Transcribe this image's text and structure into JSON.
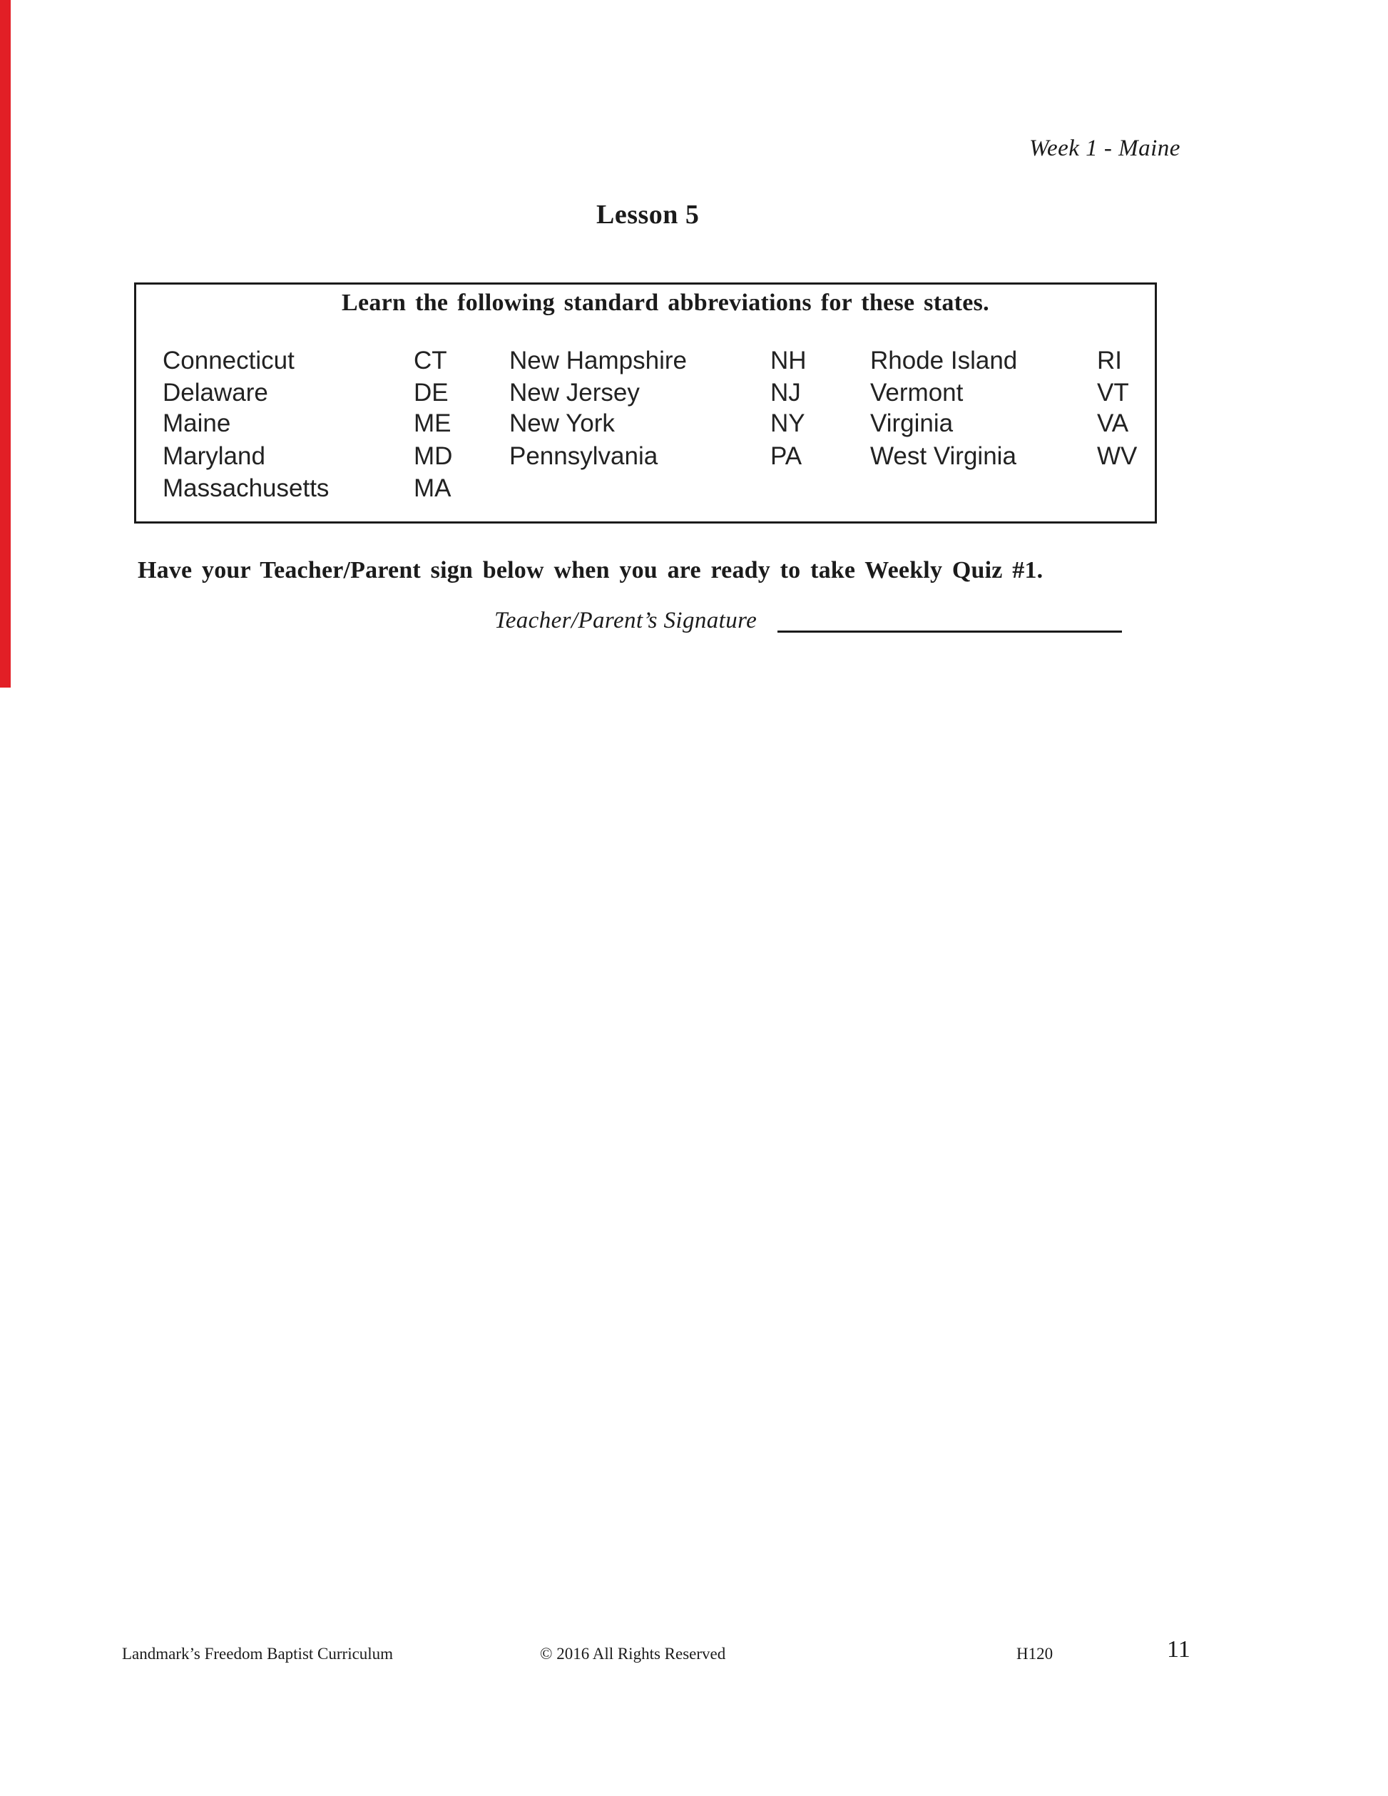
{
  "colors": {
    "scan-red": "#e21f26",
    "ink": "#1b1b1b"
  },
  "header": {
    "week_label": "Week 1 - Maine"
  },
  "lesson": {
    "title": "Lesson 5"
  },
  "abbreviation_box": {
    "heading": "Learn the following standard abbreviations for these states.",
    "rows": [
      {
        "state1": "Connecticut",
        "abbr1": "CT",
        "state2": "New Hampshire",
        "abbr2": "NH",
        "state3": "Rhode Island",
        "abbr3": "RI"
      },
      {
        "state1": "Delaware",
        "abbr1": "DE",
        "state2": "New Jersey",
        "abbr2": "NJ",
        "state3": "Vermont",
        "abbr3": "VT"
      },
      {
        "state1": "Maine",
        "abbr1": "ME",
        "state2": "New York",
        "abbr2": "NY",
        "state3": "Virginia",
        "abbr3": "VA"
      },
      {
        "state1": "Maryland",
        "abbr1": "MD",
        "state2": "Pennsylvania",
        "abbr2": "PA",
        "state3": "West Virginia",
        "abbr3": "WV"
      },
      {
        "state1": "Massachusetts",
        "abbr1": "MA",
        "state2": "",
        "abbr2": "",
        "state3": "",
        "abbr3": ""
      }
    ]
  },
  "instruction": "Have your Teacher/Parent sign below when you are ready to take Weekly Quiz #1.",
  "signature": {
    "label": "Teacher/Parent’s Signature"
  },
  "footer": {
    "publisher": "Landmark’s Freedom Baptist Curriculum",
    "copyright": "© 2016 All Rights Reserved",
    "course_code": "H120",
    "page_number": "11"
  }
}
